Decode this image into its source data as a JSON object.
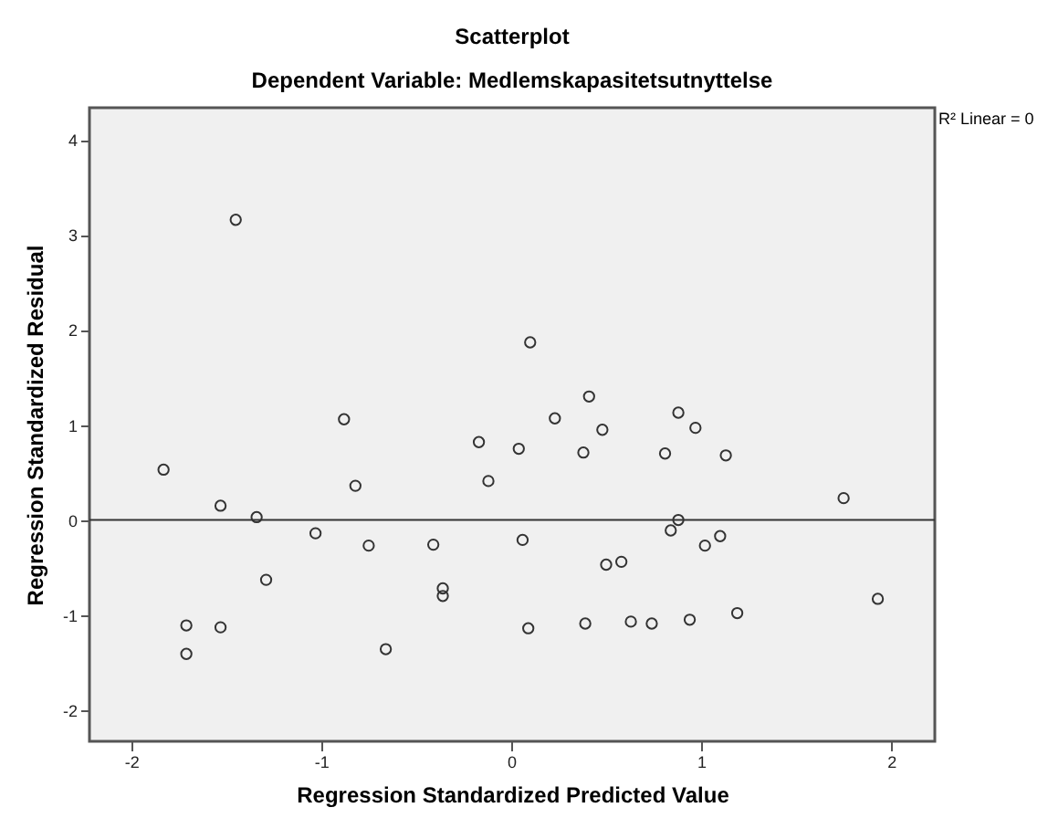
{
  "chart_data": {
    "type": "scatter",
    "title": "Scatterplot",
    "subtitle": "Dependent Variable: Medlemskapasitetsutnyttelse",
    "xlabel": "Regression Standardized Predicted Value",
    "ylabel": "Regression Standardized Residual",
    "annotations": [
      "R² Linear = 0"
    ],
    "x": [
      -1.45,
      -0.88,
      0.1,
      -0.17,
      0.04,
      0.41,
      0.23,
      0.48,
      0.88,
      0.97,
      -1.83,
      -1.53,
      -1.34,
      -0.82,
      -0.12,
      -1.03,
      -0.75,
      -0.41,
      0.06,
      -1.29,
      -0.36,
      -0.36,
      -1.71,
      -1.53,
      -1.71,
      -0.66,
      0.09,
      0.38,
      0.81,
      1.13,
      1.75,
      0.88,
      0.84,
      1.1,
      1.02,
      0.5,
      0.58,
      0.39,
      0.63,
      0.74,
      0.94,
      1.19,
      1.93
    ],
    "values": [
      3.16,
      1.06,
      1.87,
      0.82,
      0.75,
      1.3,
      1.07,
      0.95,
      1.13,
      0.97,
      0.53,
      0.15,
      0.03,
      0.36,
      0.41,
      -0.14,
      -0.27,
      -0.26,
      -0.21,
      -0.63,
      -0.72,
      -0.8,
      -1.11,
      -1.13,
      -1.41,
      -1.36,
      -1.14,
      0.71,
      0.7,
      0.68,
      0.23,
      0.0,
      -0.11,
      -0.17,
      -0.27,
      -0.47,
      -0.44,
      -1.09,
      -1.07,
      -1.09,
      -1.05,
      -0.98,
      -0.83
    ],
    "color": "#333333",
    "marker": "circle",
    "grid": false,
    "xlim": [
      -2.22,
      2.23
    ],
    "ylim": [
      -2.33,
      4.34
    ],
    "xticks": [
      -2,
      -1,
      0,
      1,
      2
    ],
    "yticks": [
      -2,
      -1,
      0,
      1,
      2,
      3,
      4
    ],
    "ref_lines": [
      {
        "axis": "y",
        "value": 0,
        "color": "#333333"
      }
    ]
  }
}
